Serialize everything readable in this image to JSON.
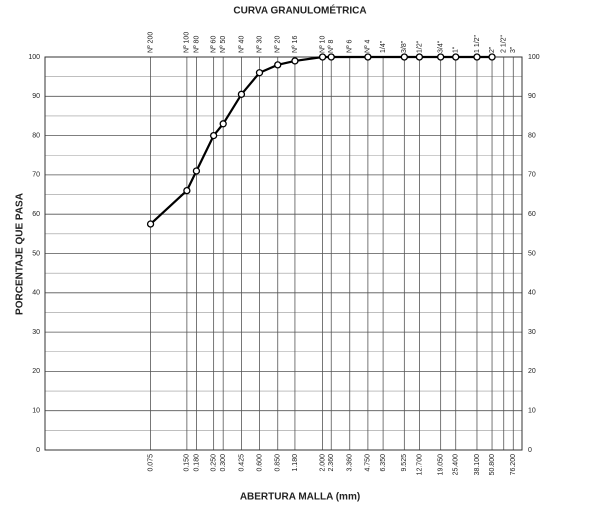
{
  "chart_data": {
    "type": "line",
    "title": "CURVA GRANULOMÉTRICA",
    "x_label": "ABERTURA MALLA (mm)",
    "y_label": "PORCENTAJE QUE PASA",
    "log_x": true,
    "xlim": [
      0.01,
      90
    ],
    "ylim": [
      0,
      100
    ],
    "yticks": [
      0,
      10,
      20,
      30,
      40,
      50,
      60,
      70,
      80,
      90,
      100
    ],
    "grid": true,
    "sieves": [
      {
        "name": "Nº 200",
        "opening": 0.075,
        "label": "0.075"
      },
      {
        "name": "Nº 100",
        "opening": 0.15,
        "label": "0.150"
      },
      {
        "name": "Nº 80",
        "opening": 0.18,
        "label": "0.180"
      },
      {
        "name": "Nº 60",
        "opening": 0.25,
        "label": "0.250"
      },
      {
        "name": "Nº 50",
        "opening": 0.3,
        "label": "0.300"
      },
      {
        "name": "Nº 40",
        "opening": 0.425,
        "label": "0.425"
      },
      {
        "name": "Nº 30",
        "opening": 0.6,
        "label": "0.600"
      },
      {
        "name": "Nº 20",
        "opening": 0.85,
        "label": "0.850"
      },
      {
        "name": "Nº 16",
        "opening": 1.18,
        "label": "1.180"
      },
      {
        "name": "Nº 10",
        "opening": 2,
        "label": "2.000"
      },
      {
        "name": "Nº 8",
        "opening": 2.36,
        "label": "2.360"
      },
      {
        "name": "Nº 6",
        "opening": 3.36,
        "label": "3.360"
      },
      {
        "name": "Nº 4",
        "opening": 4.75,
        "label": "4.750"
      },
      {
        "name": "1/4\"",
        "opening": 6.35,
        "label": "6.350"
      },
      {
        "name": "3/8\"",
        "opening": 9.525,
        "label": "9.525"
      },
      {
        "name": "1/2\"",
        "opening": 12.7,
        "label": "12.700"
      },
      {
        "name": "3/4\"",
        "opening": 19.05,
        "label": "19.050"
      },
      {
        "name": "1\"",
        "opening": 25.4,
        "label": "25.400"
      },
      {
        "name": "1 1/2\"",
        "opening": 38.1,
        "label": "38.100"
      },
      {
        "name": "2\"",
        "opening": 50.8,
        "label": "50.800"
      },
      {
        "name": "2 1/2\"",
        "opening": 63.5,
        "label": null
      },
      {
        "name": "3\"",
        "opening": 76.2,
        "label": "76.200"
      }
    ],
    "series": [
      {
        "color": "#000000",
        "x": [
          0.075,
          0.15,
          0.18,
          0.25,
          0.3,
          0.425,
          0.6,
          0.85,
          1.18,
          2,
          2.36,
          4.75,
          9.525,
          12.7,
          19.05,
          25.4,
          38.1,
          50.8
        ],
        "values": [
          57.5,
          66,
          71,
          80,
          83,
          90.5,
          96,
          98,
          99,
          100,
          100,
          100,
          100,
          100,
          100,
          100,
          100,
          100
        ]
      }
    ]
  }
}
